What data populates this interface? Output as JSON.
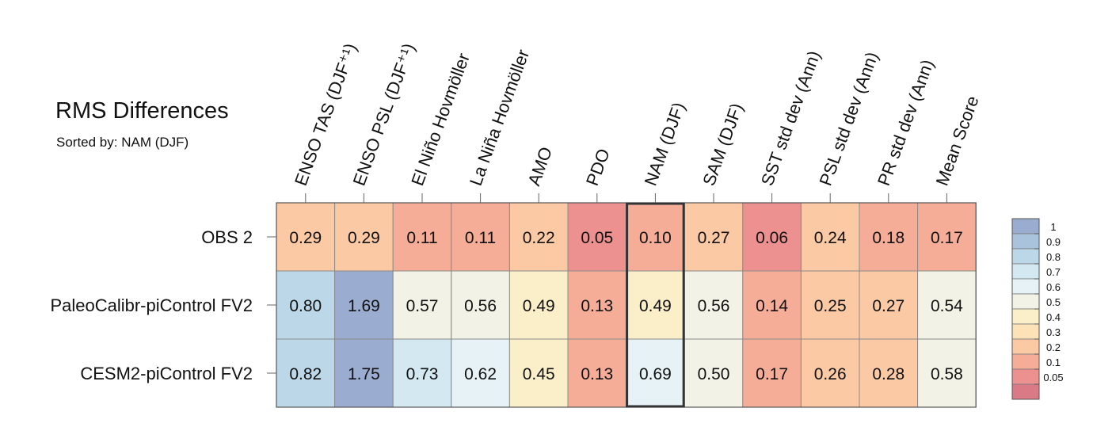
{
  "title": "RMS Differences",
  "subtitle": "Sorted by: NAM (DJF)",
  "chart_data": {
    "type": "heatmap",
    "title": "RMS Differences",
    "subtitle": "Sorted by: NAM (DJF)",
    "columns": [
      "ENSO TAS (DJF⁺¹)",
      "ENSO PSL (DJF⁺¹)",
      "El Niño Hovmöller",
      "La Niña Hovmöller",
      "AMO",
      "PDO",
      "NAM (DJF)",
      "SAM (DJF)",
      "SST std dev (Ann)",
      "PSL std dev (Ann)",
      "PR std dev (Ann)",
      "Mean Score"
    ],
    "rows": [
      "OBS 2",
      "PaleoCalibr-piControl FV2",
      "CESM2-piControl FV2"
    ],
    "values": [
      [
        0.29,
        0.29,
        0.11,
        0.11,
        0.22,
        0.05,
        0.1,
        0.27,
        0.06,
        0.24,
        0.18,
        0.17
      ],
      [
        0.8,
        1.69,
        0.57,
        0.56,
        0.49,
        0.13,
        0.49,
        0.56,
        0.14,
        0.25,
        0.27,
        0.54
      ],
      [
        0.82,
        1.75,
        0.73,
        0.62,
        0.45,
        0.13,
        0.69,
        0.5,
        0.17,
        0.26,
        0.28,
        0.58
      ]
    ],
    "value_labels": [
      [
        "0.29",
        "0.29",
        "0.11",
        "0.11",
        "0.22",
        "0.05",
        "0.10",
        "0.27",
        "0.06",
        "0.24",
        "0.18",
        "0.17"
      ],
      [
        "0.80",
        "1.69",
        "0.57",
        "0.56",
        "0.49",
        "0.13",
        "0.49",
        "0.56",
        "0.14",
        "0.25",
        "0.27",
        "0.54"
      ],
      [
        "0.82",
        "1.75",
        "0.73",
        "0.62",
        "0.45",
        "0.13",
        "0.69",
        "0.50",
        "0.17",
        "0.26",
        "0.28",
        "0.58"
      ]
    ],
    "highlighted_column": "NAM (DJF)",
    "colorbar": {
      "labels": [
        "1",
        "0.9",
        "0.8",
        "0.7",
        "0.6",
        "0.5",
        "0.4",
        "0.3",
        "0.2",
        "0.1",
        "0.05"
      ],
      "colors": [
        "#9aaccf",
        "#a9c3dc",
        "#bcd8e8",
        "#d3e8f1",
        "#e6f2f5",
        "#f3f2e6",
        "#fbefc9",
        "#fde2b8",
        "#fcc9a5",
        "#f5ad98",
        "#ec9090",
        "#da7a86"
      ],
      "placement": "right"
    },
    "grid": true
  }
}
